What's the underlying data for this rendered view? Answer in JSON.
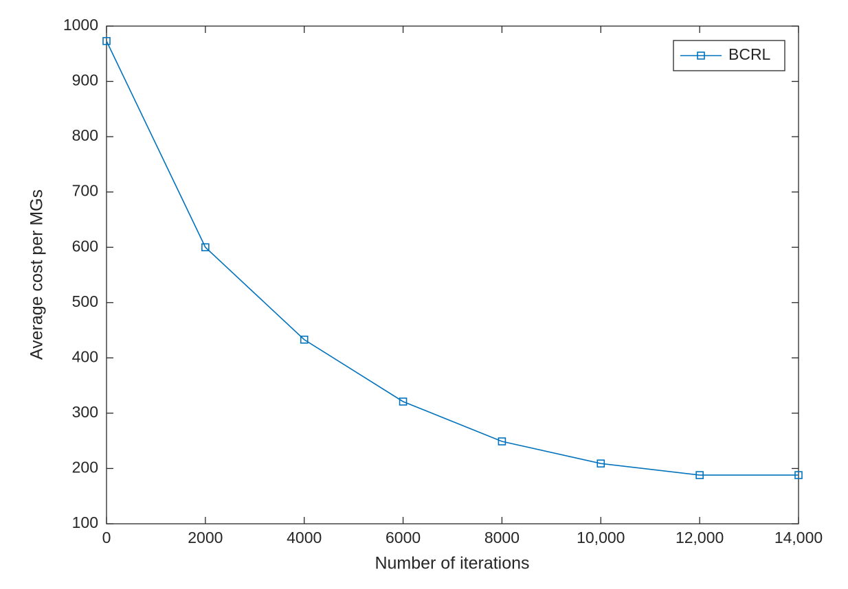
{
  "chart_data": {
    "type": "line",
    "x_label": "Number of iterations",
    "y_label": "Average cost per MGs",
    "x": [
      0,
      2000,
      4000,
      6000,
      8000,
      10000,
      12000,
      14000
    ],
    "series": [
      {
        "name": "BCRL",
        "color": "#0072bd",
        "marker": "square",
        "values": [
          973,
          600,
          433,
          321,
          249,
          209,
          188,
          188
        ]
      }
    ],
    "xlim": [
      0,
      14000
    ],
    "xticks": [
      0,
      2000,
      4000,
      6000,
      8000,
      {
        "value": 10000,
        "label": "10,000"
      },
      {
        "value": 12000,
        "label": "12,000"
      },
      {
        "value": 14000,
        "label": "14,000"
      }
    ],
    "ylim": [
      100,
      1000
    ],
    "yticks": [
      100,
      200,
      300,
      400,
      500,
      600,
      700,
      800,
      900,
      1000
    ],
    "grid": false,
    "legend": "upper right"
  }
}
